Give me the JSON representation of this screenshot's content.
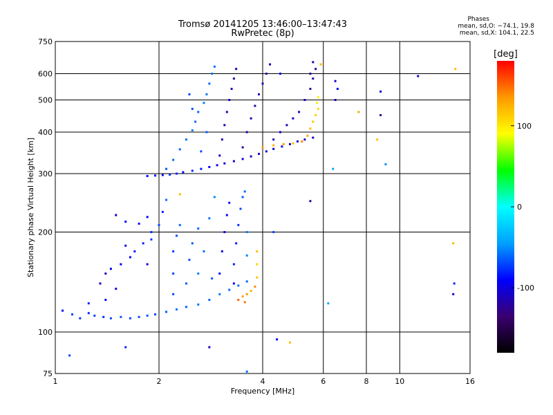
{
  "title_line1": "Tromsø 20141205 13:46:00–13:47:43",
  "title_line2": "RwPretec (8p)",
  "phase_stats": {
    "heading": "Phases",
    "o_line": "mean, sd,O: −74.1, 19.8",
    "x_line": "mean, sd,X: 104.1, 22.5"
  },
  "chart_data": {
    "type": "scatter",
    "xlabel": "Frequency [MHz]",
    "ylabel": "Stationary phase Virtual Height [km]",
    "xscale": "log",
    "yscale": "log",
    "xlim": [
      1,
      16
    ],
    "ylim": [
      75,
      750
    ],
    "x_ticks": [
      1,
      2,
      4,
      6,
      8,
      10,
      16
    ],
    "y_ticks": [
      75,
      100,
      200,
      300,
      400,
      500,
      600,
      750
    ],
    "grid": true,
    "colorbar": {
      "label": "[deg]",
      "range": [
        -180,
        180
      ],
      "ticks": [
        100,
        0,
        -100
      ],
      "colors": [
        "#000000",
        "#3a0070",
        "#0000ff",
        "#00a0ff",
        "#00ffff",
        "#00ff00",
        "#ffff00",
        "#ff9900",
        "#ff0000"
      ]
    },
    "points": [
      [
        1.05,
        116,
        -90
      ],
      [
        1.12,
        113,
        -70
      ],
      [
        1.18,
        110,
        -75
      ],
      [
        1.25,
        114,
        -80
      ],
      [
        1.3,
        112,
        -72
      ],
      [
        1.38,
        111,
        -78
      ],
      [
        1.45,
        110,
        -70
      ],
      [
        1.55,
        111,
        -65
      ],
      [
        1.65,
        110,
        -70
      ],
      [
        1.75,
        111,
        -68
      ],
      [
        1.85,
        112,
        -66
      ],
      [
        1.95,
        113,
        -70
      ],
      [
        2.1,
        115,
        -64
      ],
      [
        2.25,
        117,
        -60
      ],
      [
        2.4,
        119,
        -62
      ],
      [
        2.6,
        121,
        -58
      ],
      [
        2.8,
        125,
        -60
      ],
      [
        3.0,
        130,
        -55
      ],
      [
        3.2,
        134,
        -60
      ],
      [
        3.4,
        138,
        -58
      ],
      [
        3.6,
        142,
        -62
      ],
      [
        1.25,
        122,
        -80
      ],
      [
        1.4,
        125,
        -90
      ],
      [
        1.5,
        135,
        -100
      ],
      [
        1.45,
        155,
        -95
      ],
      [
        1.55,
        160,
        -90
      ],
      [
        1.65,
        168,
        -92
      ],
      [
        1.7,
        175,
        -85
      ],
      [
        1.6,
        182,
        -100
      ],
      [
        1.8,
        185,
        -80
      ],
      [
        1.9,
        190,
        -75
      ],
      [
        1.9,
        200,
        -78
      ],
      [
        2.0,
        210,
        -70
      ],
      [
        2.05,
        230,
        -82
      ],
      [
        2.1,
        250,
        -60
      ],
      [
        1.75,
        212,
        -88
      ],
      [
        1.85,
        160,
        -96
      ],
      [
        1.4,
        150,
        -110
      ],
      [
        1.35,
        140,
        -105
      ],
      [
        2.2,
        130,
        -70
      ],
      [
        2.2,
        150,
        -72
      ],
      [
        2.2,
        175,
        -75
      ],
      [
        2.25,
        195,
        -68
      ],
      [
        2.3,
        210,
        -60
      ],
      [
        2.4,
        140,
        -65
      ],
      [
        2.45,
        165,
        -70
      ],
      [
        2.5,
        185,
        -66
      ],
      [
        2.6,
        205,
        -62
      ],
      [
        2.6,
        150,
        -55
      ],
      [
        2.7,
        175,
        -60
      ],
      [
        2.8,
        220,
        -58
      ],
      [
        2.9,
        255,
        -50
      ],
      [
        2.85,
        145,
        -65
      ],
      [
        3.0,
        150,
        -90
      ],
      [
        3.05,
        175,
        -95
      ],
      [
        3.1,
        200,
        -100
      ],
      [
        3.15,
        225,
        -92
      ],
      [
        3.2,
        245,
        -85
      ],
      [
        3.3,
        160,
        -80
      ],
      [
        3.35,
        185,
        -82
      ],
      [
        3.4,
        210,
        -78
      ],
      [
        3.45,
        235,
        -70
      ],
      [
        3.5,
        255,
        -65
      ],
      [
        3.55,
        265,
        -60
      ],
      [
        3.6,
        200,
        -55
      ],
      [
        3.6,
        170,
        -52
      ],
      [
        3.3,
        140,
        -88
      ],
      [
        3.5,
        128,
        130
      ],
      [
        3.6,
        130,
        135
      ],
      [
        3.7,
        133,
        125
      ],
      [
        3.8,
        137,
        140
      ],
      [
        3.85,
        146,
        115
      ],
      [
        3.85,
        160,
        110
      ],
      [
        3.85,
        175,
        120
      ],
      [
        3.4,
        125,
        150
      ],
      [
        3.55,
        123,
        145
      ],
      [
        1.5,
        225,
        -100
      ],
      [
        1.6,
        215,
        -95
      ],
      [
        1.85,
        222,
        -90
      ],
      [
        2.3,
        260,
        120
      ],
      [
        3.6,
        76,
        -60
      ],
      [
        4.4,
        95,
        -90
      ],
      [
        4.8,
        93,
        120
      ],
      [
        2.8,
        90,
        -110
      ],
      [
        1.1,
        85,
        -70
      ],
      [
        1.6,
        90,
        -80
      ],
      [
        4.3,
        200,
        -70
      ],
      [
        5.5,
        248,
        -120
      ],
      [
        6.2,
        122,
        -40
      ],
      [
        14.3,
        185,
        120
      ],
      [
        14.4,
        140,
        -80
      ],
      [
        14.3,
        130,
        -110
      ],
      [
        1.85,
        295,
        -90
      ],
      [
        1.95,
        296,
        -85
      ],
      [
        2.05,
        297,
        -88
      ],
      [
        2.15,
        298,
        -82
      ],
      [
        2.25,
        300,
        -80
      ],
      [
        2.35,
        303,
        -86
      ],
      [
        2.5,
        306,
        -80
      ],
      [
        2.65,
        310,
        -84
      ],
      [
        2.8,
        314,
        -90
      ],
      [
        2.95,
        318,
        -95
      ],
      [
        3.1,
        322,
        -100
      ],
      [
        3.3,
        327,
        -105
      ],
      [
        3.5,
        332,
        -102
      ],
      [
        3.7,
        338,
        -108
      ],
      [
        3.9,
        344,
        -110
      ],
      [
        4.1,
        350,
        -105
      ],
      [
        4.3,
        356,
        -100
      ],
      [
        4.55,
        362,
        -95
      ],
      [
        4.8,
        368,
        -110
      ],
      [
        5.05,
        375,
        -112
      ],
      [
        5.3,
        380,
        -108
      ],
      [
        5.6,
        385,
        -105
      ],
      [
        2.1,
        310,
        -65
      ],
      [
        2.2,
        330,
        -60
      ],
      [
        2.3,
        355,
        -62
      ],
      [
        2.4,
        380,
        -58
      ],
      [
        2.5,
        405,
        -55
      ],
      [
        2.55,
        430,
        -60
      ],
      [
        2.6,
        460,
        -62
      ],
      [
        2.7,
        490,
        -55
      ],
      [
        2.75,
        520,
        -58
      ],
      [
        2.8,
        560,
        -60
      ],
      [
        2.85,
        600,
        -56
      ],
      [
        2.9,
        630,
        -60
      ],
      [
        2.65,
        350,
        -70
      ],
      [
        2.75,
        400,
        -64
      ],
      [
        2.5,
        470,
        -68
      ],
      [
        2.45,
        520,
        -72
      ],
      [
        3.0,
        340,
        -110
      ],
      [
        3.05,
        380,
        -112
      ],
      [
        3.1,
        420,
        -108
      ],
      [
        3.15,
        460,
        -115
      ],
      [
        3.2,
        500,
        -105
      ],
      [
        3.25,
        540,
        -110
      ],
      [
        3.3,
        580,
        -118
      ],
      [
        3.35,
        620,
        -112
      ],
      [
        3.5,
        360,
        -120
      ],
      [
        3.6,
        400,
        -115
      ],
      [
        3.7,
        440,
        -112
      ],
      [
        3.8,
        480,
        -118
      ],
      [
        3.9,
        520,
        -110
      ],
      [
        4.0,
        560,
        -115
      ],
      [
        4.1,
        600,
        -120
      ],
      [
        4.2,
        640,
        -112
      ],
      [
        4.3,
        380,
        -110
      ],
      [
        4.5,
        400,
        -105
      ],
      [
        4.7,
        420,
        -112
      ],
      [
        4.9,
        440,
        -108
      ],
      [
        5.1,
        460,
        -115
      ],
      [
        5.3,
        500,
        -110
      ],
      [
        5.5,
        540,
        -118
      ],
      [
        5.6,
        580,
        -112
      ],
      [
        5.7,
        620,
        -120
      ],
      [
        5.5,
        600,
        -125
      ],
      [
        5.6,
        650,
        -115
      ],
      [
        4.5,
        600,
        -100
      ],
      [
        4.0,
        360,
        130
      ],
      [
        4.3,
        365,
        125
      ],
      [
        4.6,
        368,
        135
      ],
      [
        4.9,
        370,
        120
      ],
      [
        5.2,
        375,
        140
      ],
      [
        5.4,
        390,
        130
      ],
      [
        5.5,
        410,
        120
      ],
      [
        5.6,
        430,
        115
      ],
      [
        5.7,
        450,
        110
      ],
      [
        5.8,
        470,
        105
      ],
      [
        5.75,
        490,
        100
      ],
      [
        5.8,
        510,
        95
      ],
      [
        5.9,
        640,
        120
      ],
      [
        6.5,
        570,
        -100
      ],
      [
        6.6,
        540,
        -90
      ],
      [
        6.5,
        500,
        -110
      ],
      [
        7.6,
        460,
        130
      ],
      [
        8.8,
        530,
        -100
      ],
      [
        8.8,
        450,
        -120
      ],
      [
        9.1,
        320,
        -50
      ],
      [
        8.6,
        380,
        120
      ],
      [
        11.3,
        590,
        -100
      ],
      [
        14.5,
        620,
        120
      ],
      [
        6.4,
        310,
        -40
      ]
    ]
  }
}
